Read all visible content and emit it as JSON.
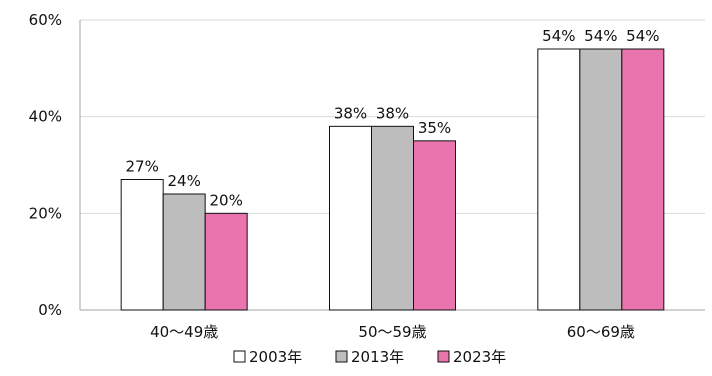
{
  "chart_data": {
    "type": "bar",
    "categories": [
      "40～49歳",
      "50～59歳",
      "60～69歳"
    ],
    "series": [
      {
        "name": "2003年",
        "values": [
          27,
          38,
          54
        ],
        "labels": [
          "27%",
          "38%",
          "54%"
        ],
        "color": "#ffffff"
      },
      {
        "name": "2013年",
        "values": [
          24,
          38,
          54
        ],
        "labels": [
          "24%",
          "38%",
          "54%"
        ],
        "color": "#bdbdbd"
      },
      {
        "name": "2023年",
        "values": [
          20,
          35,
          54
        ],
        "labels": [
          "20%",
          "35%",
          "54%"
        ],
        "color": "#ea74ad"
      }
    ],
    "y_ticks": [
      {
        "value": 0,
        "label": "0%"
      },
      {
        "value": 20,
        "label": "20%"
      },
      {
        "value": 40,
        "label": "40%"
      },
      {
        "value": 60,
        "label": "60%"
      }
    ],
    "ylim": [
      0,
      60
    ],
    "title": "",
    "xlabel": "",
    "ylabel": "",
    "grid": true,
    "legend_position": "bottom",
    "colors": {
      "grid": "#d9d9d9",
      "axis": "#a6a6a6",
      "bar_border": "#111111"
    }
  }
}
